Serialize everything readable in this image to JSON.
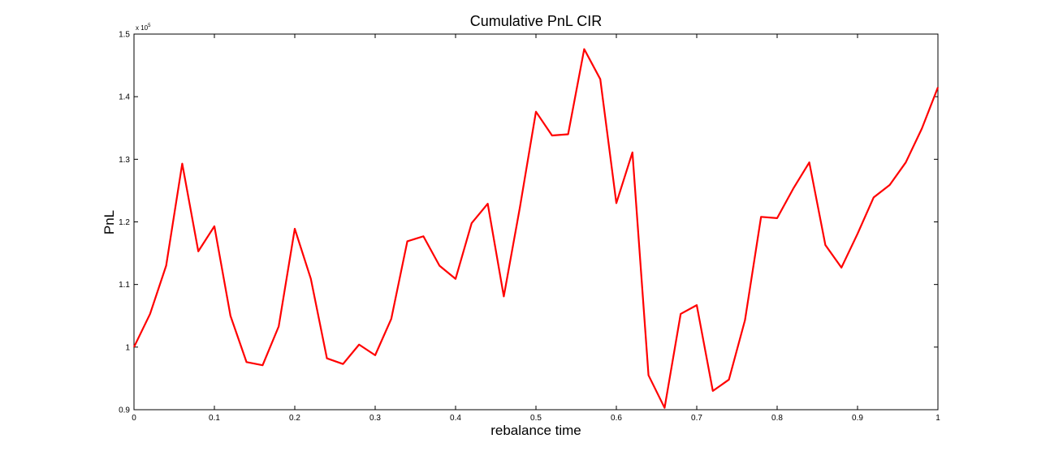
{
  "chart_data": {
    "type": "line",
    "title": "Cumulative PnL CIR",
    "xlabel": "rebalance time",
    "ylabel": "PnL",
    "xlim": [
      0,
      1
    ],
    "ylim": [
      90000,
      150000
    ],
    "y_multiplier_label": "x 10",
    "y_multiplier_exponent": "5",
    "x_ticks": [
      0,
      0.1,
      0.2,
      0.3,
      0.4,
      0.5,
      0.6,
      0.7,
      0.8,
      0.9,
      1
    ],
    "x_tick_labels": [
      "0",
      "0.1",
      "0.2",
      "0.3",
      "0.4",
      "0.5",
      "0.6",
      "0.7",
      "0.8",
      "0.9",
      "1"
    ],
    "y_ticks": [
      90000,
      100000,
      110000,
      120000,
      130000,
      140000,
      150000
    ],
    "y_tick_labels": [
      "0.9",
      "1",
      "1.1",
      "1.2",
      "1.3",
      "1.4",
      "1.5"
    ],
    "grid": false,
    "series": [
      {
        "color": "#ff0000",
        "x": [
          0,
          0.02,
          0.04,
          0.06,
          0.08,
          0.1,
          0.12,
          0.14,
          0.16,
          0.18,
          0.2,
          0.22,
          0.24,
          0.26,
          0.28,
          0.3,
          0.32,
          0.34,
          0.36,
          0.38,
          0.4,
          0.42,
          0.44,
          0.46,
          0.48,
          0.5,
          0.52,
          0.54,
          0.56,
          0.58,
          0.6,
          0.62,
          0.64,
          0.66,
          0.68,
          0.7,
          0.72,
          0.74,
          0.76,
          0.78,
          0.8,
          0.82,
          0.84,
          0.86,
          0.88,
          0.9,
          0.92,
          0.94,
          0.96,
          0.98,
          1
        ],
        "y": [
          100000,
          105300,
          113000,
          129300,
          115300,
          119300,
          105000,
          97600,
          97100,
          103300,
          118900,
          110900,
          98200,
          97300,
          100400,
          98700,
          104500,
          116900,
          117700,
          113000,
          110900,
          119800,
          122900,
          108100,
          122300,
          137600,
          133800,
          134000,
          147600,
          142800,
          123000,
          131100,
          95500,
          90300,
          105300,
          106700,
          93000,
          94800,
          104300,
          120800,
          120600,
          125300,
          129500,
          116300,
          112700,
          118100,
          123900,
          125900,
          129500,
          134900,
          141500
        ]
      }
    ]
  }
}
